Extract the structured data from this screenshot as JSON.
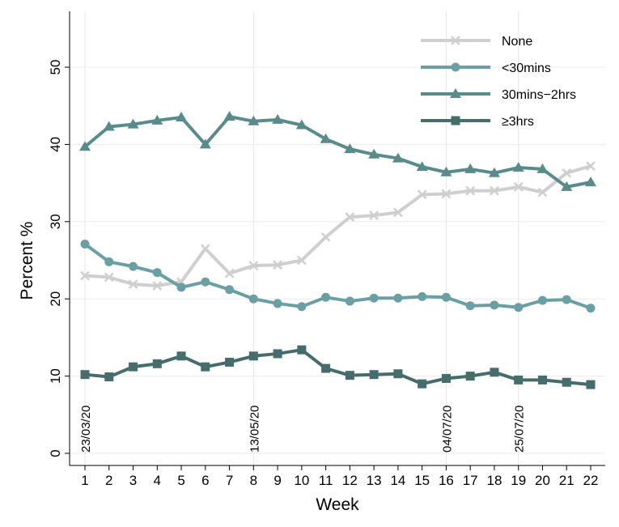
{
  "chart_data": {
    "type": "line",
    "title": "",
    "xlabel": "Week",
    "ylabel": "Percent %",
    "x": [
      1,
      2,
      3,
      4,
      5,
      6,
      7,
      8,
      9,
      10,
      11,
      12,
      13,
      14,
      15,
      16,
      17,
      18,
      19,
      20,
      21,
      22
    ],
    "ylim": [
      0,
      55
    ],
    "yticks": [
      0,
      10,
      20,
      30,
      40,
      50
    ],
    "grid": true,
    "legend_position": "top-right",
    "annotations": [
      {
        "week": 1,
        "label": "23/03/20"
      },
      {
        "week": 8,
        "label": "13/05/20"
      },
      {
        "week": 16,
        "label": "04/07/20"
      },
      {
        "week": 19,
        "label": "25/07/20"
      }
    ],
    "series": [
      {
        "name": "None",
        "marker": "x",
        "color": "#cfcfcf",
        "values": [
          23.0,
          22.8,
          21.9,
          21.7,
          22.2,
          26.5,
          23.3,
          24.3,
          24.4,
          25.0,
          28.0,
          30.6,
          30.8,
          31.2,
          33.5,
          33.6,
          34.0,
          34.0,
          34.5,
          33.8,
          36.3,
          37.2
        ]
      },
      {
        "name": "<30mins",
        "marker": "circle",
        "color": "#6a9fa3",
        "values": [
          27.1,
          24.8,
          24.2,
          23.4,
          21.5,
          22.2,
          21.2,
          20.0,
          19.4,
          19.0,
          20.2,
          19.7,
          20.1,
          20.1,
          20.3,
          20.2,
          19.1,
          19.2,
          18.9,
          19.8,
          19.9,
          18.8
        ]
      },
      {
        "name": "30mins−2hrs",
        "marker": "triangle",
        "color": "#5a8b8b",
        "values": [
          39.7,
          42.3,
          42.6,
          43.1,
          43.5,
          40.0,
          43.6,
          43.0,
          43.2,
          42.5,
          40.7,
          39.4,
          38.7,
          38.2,
          37.1,
          36.4,
          36.8,
          36.3,
          37.0,
          36.8,
          34.5,
          35.1
        ]
      },
      {
        "name": "≥3hrs",
        "marker": "square",
        "color": "#466c6c",
        "values": [
          10.2,
          9.9,
          11.2,
          11.6,
          12.6,
          11.2,
          11.8,
          12.6,
          12.9,
          13.4,
          11.0,
          10.1,
          10.2,
          10.3,
          9.0,
          9.7,
          10.0,
          10.5,
          9.5,
          9.5,
          9.2,
          8.9
        ]
      }
    ]
  }
}
